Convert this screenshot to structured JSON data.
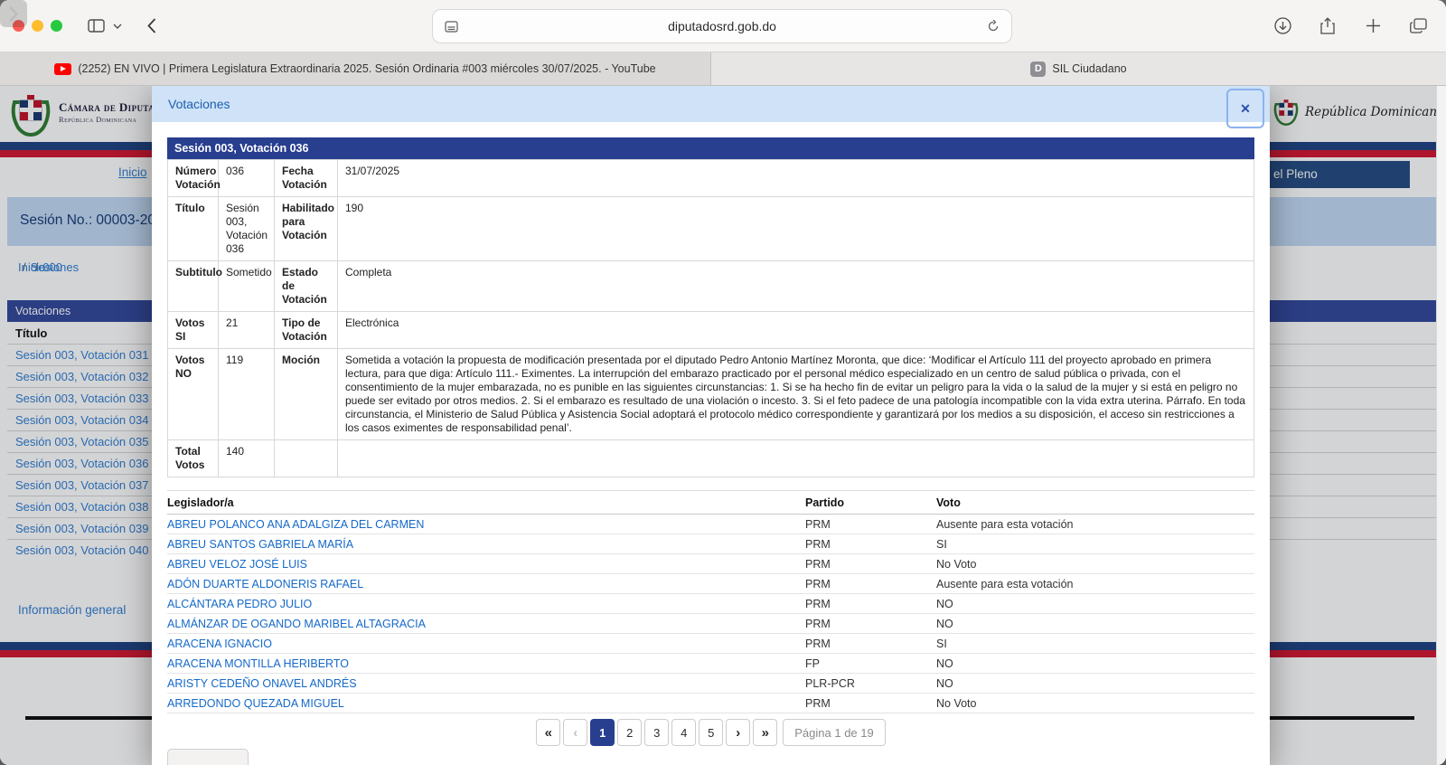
{
  "colors": {
    "navy_bar": "#283e8f",
    "flag_navy": "#1d4080",
    "flag_red": "#d31430",
    "modal_header_bg": "#cfe2f8",
    "modal_title": "#1c5fad",
    "link_blue": "#1569c9",
    "traffic_red": "#ff5d55",
    "traffic_yellow": "#ffbd2e",
    "traffic_green": "#27c93f"
  },
  "browser": {
    "url": "diputadosrd.gob.do",
    "icons": [
      "sidebar-icon",
      "chevron-down-icon",
      "back-icon",
      "forward-icon",
      "page-icon",
      "reload-icon",
      "download-icon",
      "share-icon",
      "new-tab-icon",
      "tab-overview-icon"
    ],
    "tabs": [
      {
        "title": "(2252) EN VIVO | Primera Legislatura Extraordinaria 2025. Sesión Ordinaria #003 miércoles 30/07/2025. - YouTube",
        "favicon": "youtube-icon"
      },
      {
        "title": "SIL Ciudadano",
        "favicon": "letter-d-icon",
        "favicon_glyph": "D"
      }
    ]
  },
  "page": {
    "brand": {
      "org": "Cámara de Diputados",
      "country": "República Dominicana"
    },
    "brand_right_script": "República Dominicana",
    "nav": {
      "inicio_link": "Inicio",
      "highlighted_item": "el Pleno"
    },
    "session_bar": "Sesión No.: 00003-2025",
    "breadcrumb": {
      "items": [
        "Inicio",
        "Sesiones",
        "000"
      ],
      "separator": "/"
    },
    "panel": {
      "header": "Votaciones",
      "column_header": "Título",
      "links": [
        "Sesión 003, Votación 031",
        "Sesión 003, Votación 032",
        "Sesión 003, Votación 033",
        "Sesión 003, Votación 034",
        "Sesión 003, Votación 035",
        "Sesión 003, Votación 036",
        "Sesión 003, Votación 037",
        "Sesión 003, Votación 038",
        "Sesión 003, Votación 039",
        "Sesión 003, Votación 040"
      ]
    },
    "footer_links": [
      "Información general",
      "H"
    ]
  },
  "modal": {
    "title": "Votaciones",
    "close_glyph": "✕",
    "session_header": "Sesión 003, Votación 036",
    "details": [
      {
        "label1": "Número Votación",
        "value1": "036",
        "label2": "Fecha Votación",
        "value2": "31/07/2025"
      },
      {
        "label1": "Título",
        "value1": "Sesión 003, Votación 036",
        "label2": "Habilitado para Votación",
        "value2": "190"
      },
      {
        "label1": "Subtitulo",
        "value1": "Sometido",
        "label2": "Estado de Votación",
        "value2": "Completa"
      },
      {
        "label1": "Votos SI",
        "value1": "21",
        "label2": "Tipo de Votación",
        "value2": "Electrónica"
      },
      {
        "label1": "Votos NO",
        "value1": "119",
        "label2": "Moción",
        "value2": "Sometida a votación la propuesta de modificación presentada por el diputado Pedro Antonio Martínez Moronta, que dice: ‘Modificar el Artículo 111 del proyecto aprobado en primera lectura, para que diga: Artículo 111.- Eximentes. La interrupción del embarazo practicado por el personal médico especializado en un centro de salud pública o privada, con el consentimiento de la mujer embarazada, no es punible en las siguientes circunstancias: 1. Si se ha hecho fin de evitar un peligro para la vida o la salud de la mujer y si está en peligro no puede ser evitado por otros medios. 2. Si el embarazo es resultado de una violación o incesto. 3. Si el feto padece de una patología incompatible con la vida extra uterina. Párrafo. En toda circunstancia, el Ministerio de Salud Pública y Asistencia Social adoptará el protocolo médico correspondiente y garantizará por los medios a su disposición, el acceso sin restricciones a los casos eximentes de responsabilidad penal’."
      },
      {
        "label1": "Total Votos",
        "value1": "140",
        "label2": "",
        "value2": ""
      }
    ],
    "legislators": {
      "headers": [
        "Legislador/a",
        "Partido",
        "Voto"
      ],
      "rows": [
        [
          "ABREU POLANCO ANA ADALGIZA DEL CARMEN",
          "PRM",
          "Ausente para esta votación"
        ],
        [
          "ABREU SANTOS GABRIELA MARÍA",
          "PRM",
          "SI"
        ],
        [
          "ABREU VELOZ JOSÉ LUIS",
          "PRM",
          "No Voto"
        ],
        [
          "ADÓN DUARTE ALDONERIS RAFAEL",
          "PRM",
          "Ausente para esta votación"
        ],
        [
          "ALCÁNTARA PEDRO JULIO",
          "PRM",
          "NO"
        ],
        [
          "ALMÁNZAR DE OGANDO MARIBEL ALTAGRACIA",
          "PRM",
          "NO"
        ],
        [
          "ARACENA IGNACIO",
          "PRM",
          "SI"
        ],
        [
          "ARACENA MONTILLA HERIBERTO",
          "FP",
          "NO"
        ],
        [
          "ARISTY CEDEÑO ONAVEL ANDRÉS",
          "PLR-PCR",
          "NO"
        ],
        [
          "ARREDONDO QUEZADA MIGUEL",
          "PRM",
          "No Voto"
        ]
      ]
    },
    "pagination": {
      "first": "«",
      "prev": "‹",
      "next": "›",
      "last": "»",
      "pages": [
        "1",
        "2",
        "3",
        "4",
        "5"
      ],
      "active": "1",
      "status": "Página 1 de 19"
    }
  }
}
